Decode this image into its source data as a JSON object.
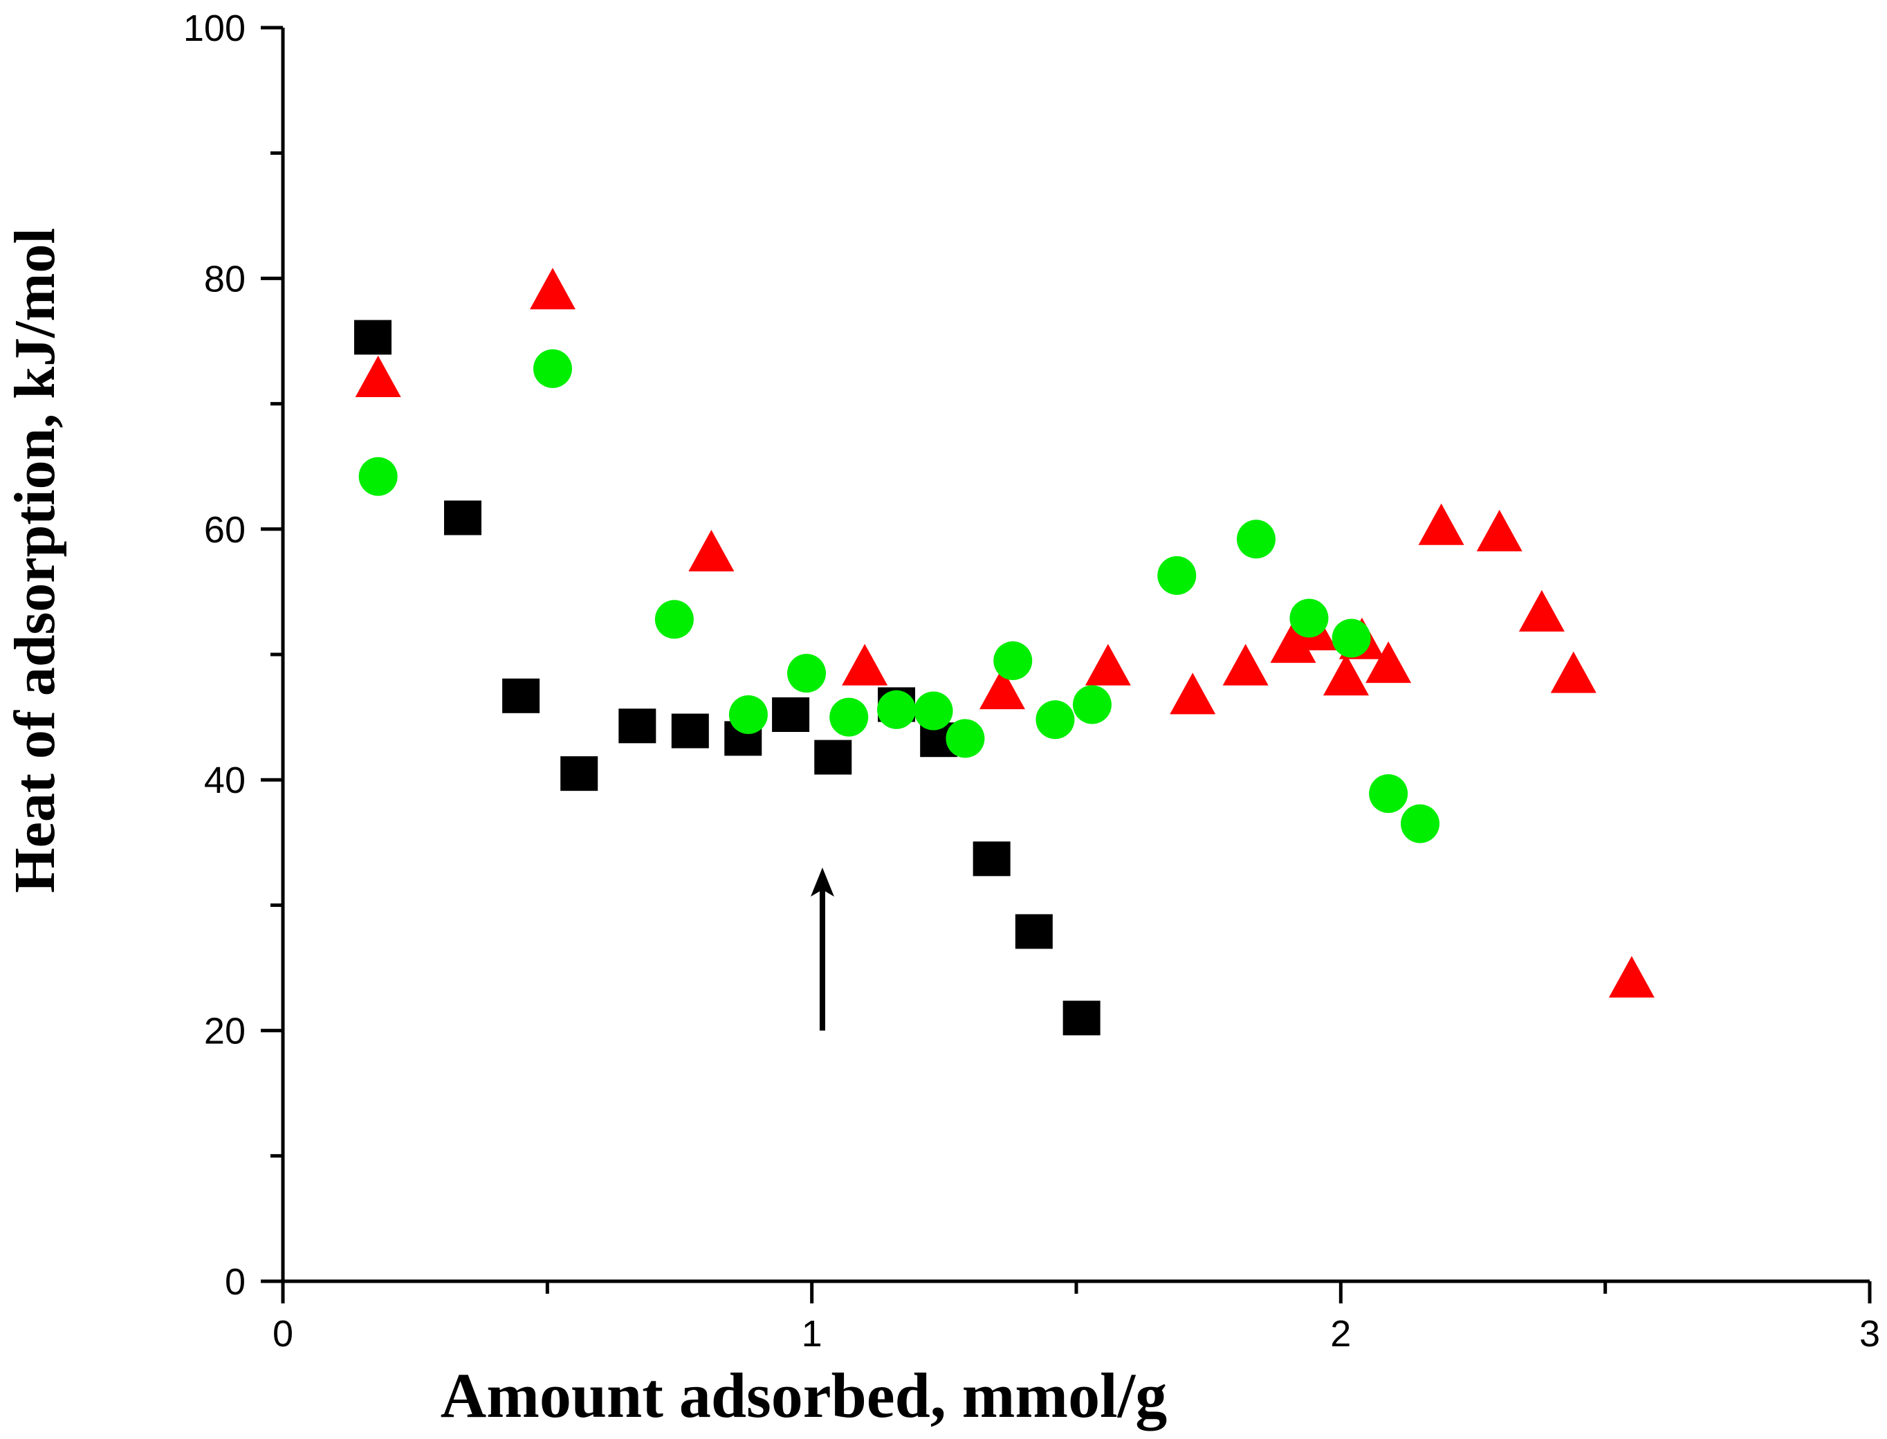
{
  "chart_data": {
    "type": "scatter",
    "title": "",
    "xlabel": "Amount adsorbed, mmol/g",
    "ylabel": "Heat of adsorption, kJ/mol",
    "xlim": [
      0,
      3
    ],
    "ylim": [
      0,
      100
    ],
    "x_ticks": [
      "0",
      "1",
      "2",
      "3"
    ],
    "y_ticks": [
      "0",
      "20",
      "40",
      "60",
      "80",
      "100"
    ],
    "grid": false,
    "legend": "none",
    "annotation": {
      "type": "arrow",
      "x": 1.02,
      "y_from": 20,
      "y_to": 33
    },
    "series": [
      {
        "name": "squares",
        "marker": "square",
        "color": "#000000",
        "points": [
          [
            0.17,
            75.3
          ],
          [
            0.34,
            60.9
          ],
          [
            0.45,
            46.7
          ],
          [
            0.56,
            40.5
          ],
          [
            0.67,
            44.3
          ],
          [
            0.77,
            43.9
          ],
          [
            0.87,
            43.3
          ],
          [
            0.96,
            45.2
          ],
          [
            1.04,
            41.8
          ],
          [
            1.16,
            46.0
          ],
          [
            1.24,
            43.2
          ],
          [
            1.34,
            33.7
          ],
          [
            1.42,
            27.9
          ],
          [
            1.51,
            21.0
          ]
        ]
      },
      {
        "name": "triangles",
        "marker": "triangle",
        "color": "#ff0000",
        "points": [
          [
            0.18,
            71.8
          ],
          [
            0.51,
            78.8
          ],
          [
            0.81,
            57.9
          ],
          [
            1.1,
            48.8
          ],
          [
            1.36,
            46.9
          ],
          [
            1.56,
            48.8
          ],
          [
            1.72,
            46.5
          ],
          [
            1.82,
            48.8
          ],
          [
            1.91,
            50.6
          ],
          [
            1.95,
            51.6
          ],
          [
            2.01,
            48.0
          ],
          [
            2.04,
            50.9
          ],
          [
            2.09,
            49.0
          ],
          [
            2.19,
            60.0
          ],
          [
            2.3,
            59.5
          ],
          [
            2.38,
            53.1
          ],
          [
            2.44,
            48.2
          ],
          [
            2.55,
            23.9
          ]
        ]
      },
      {
        "name": "circles",
        "marker": "circle",
        "color": "#00ee00",
        "points": [
          [
            0.18,
            64.2
          ],
          [
            0.51,
            72.8
          ],
          [
            0.74,
            52.8
          ],
          [
            0.88,
            45.2
          ],
          [
            0.99,
            48.5
          ],
          [
            1.07,
            45.0
          ],
          [
            1.16,
            45.6
          ],
          [
            1.23,
            45.5
          ],
          [
            1.29,
            43.3
          ],
          [
            1.38,
            49.5
          ],
          [
            1.46,
            44.8
          ],
          [
            1.53,
            46.0
          ],
          [
            1.69,
            56.3
          ],
          [
            1.84,
            59.2
          ],
          [
            1.94,
            52.9
          ],
          [
            2.02,
            51.3
          ],
          [
            2.09,
            38.9
          ],
          [
            2.15,
            36.5
          ]
        ]
      }
    ]
  }
}
